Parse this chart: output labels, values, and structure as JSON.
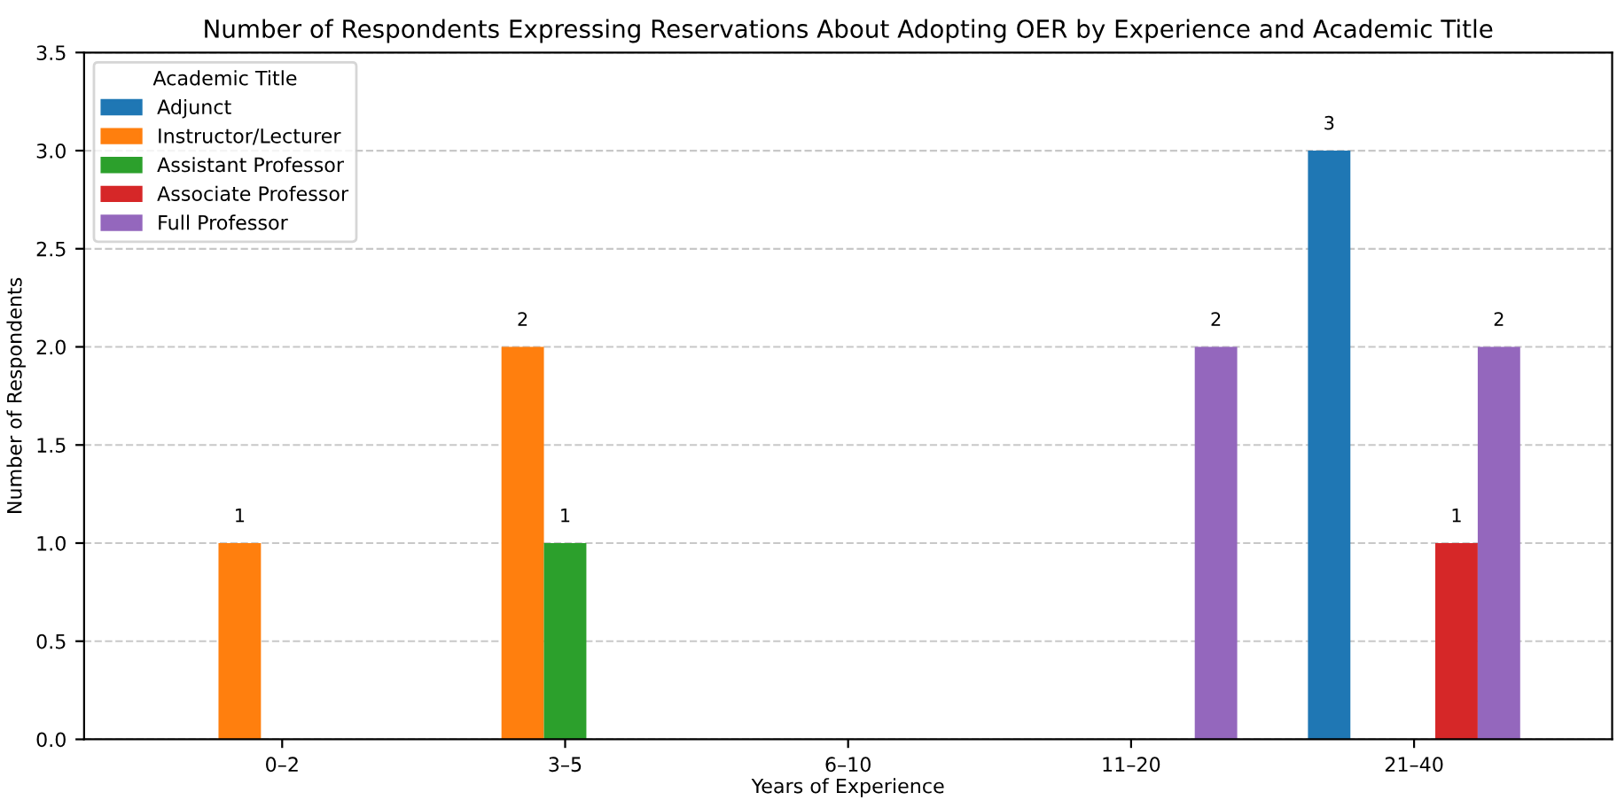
{
  "chart_data": {
    "type": "bar",
    "title": "Number of Respondents Expressing Reservations About Adopting OER by Experience and Academic Title",
    "xlabel": "Years of Experience",
    "ylabel": "Number of Respondents",
    "legend_title": "Academic Title",
    "categories": [
      "0–2",
      "3–5",
      "6–10",
      "11–20",
      "21–40"
    ],
    "series": [
      {
        "name": "Adjunct",
        "color": "#1f77b4",
        "values": [
          0,
          0,
          0,
          0,
          3
        ],
        "value_labels": [
          null,
          null,
          null,
          null,
          "3"
        ]
      },
      {
        "name": "Instructor/Lecturer",
        "color": "#ff7f0e",
        "values": [
          1,
          2,
          0,
          0,
          0
        ],
        "value_labels": [
          "1",
          "2",
          null,
          null,
          null
        ]
      },
      {
        "name": "Assistant Professor",
        "color": "#2ca02c",
        "values": [
          0,
          1,
          0,
          0,
          0
        ],
        "value_labels": [
          null,
          "1",
          null,
          null,
          null
        ]
      },
      {
        "name": "Associate Professor",
        "color": "#d62728",
        "values": [
          0,
          0,
          0,
          0,
          1
        ],
        "value_labels": [
          null,
          null,
          null,
          null,
          "1"
        ]
      },
      {
        "name": "Full Professor",
        "color": "#9467bd",
        "values": [
          0,
          0,
          0,
          2,
          2
        ],
        "value_labels": [
          null,
          null,
          null,
          "2",
          "2"
        ]
      }
    ],
    "ylim": [
      0,
      3.5
    ],
    "yticks": [
      {
        "value": 0,
        "label": "0.0"
      },
      {
        "value": 0.5,
        "label": "0.5"
      },
      {
        "value": 1,
        "label": "1.0"
      },
      {
        "value": 1.5,
        "label": "1.5"
      },
      {
        "value": 2,
        "label": "2.0"
      },
      {
        "value": 2.5,
        "label": "2.5"
      },
      {
        "value": 3,
        "label": "3.0"
      },
      {
        "value": 3.5,
        "label": "3.5"
      }
    ],
    "grid": "y",
    "legend": "top left"
  }
}
